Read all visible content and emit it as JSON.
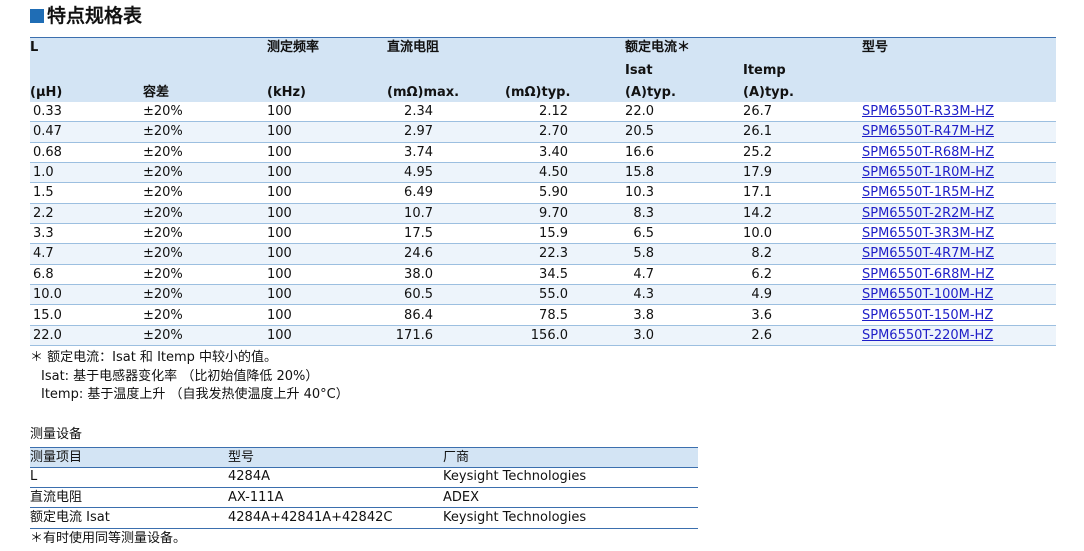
{
  "title": "特点规格表",
  "spec_table": {
    "header": [
      [
        "L",
        null,
        "测定频率",
        "直流电阻",
        null,
        "额定电流＊",
        null,
        "型号"
      ],
      [
        null,
        null,
        null,
        null,
        null,
        "Isat",
        "Itemp",
        null
      ],
      [
        "(μH)",
        "容差",
        "(kHz)",
        "(mΩ)max.",
        "(mΩ)typ.",
        "(A)typ.",
        "(A)typ.",
        null
      ]
    ],
    "rows": [
      [
        "0.33",
        "±20%",
        "100",
        "2.34",
        "2.12",
        "22.0",
        "26.7",
        "SPM6550T-R33M-HZ"
      ],
      [
        "0.47",
        "±20%",
        "100",
        "2.97",
        "2.70",
        "20.5",
        "26.1",
        "SPM6550T-R47M-HZ"
      ],
      [
        "0.68",
        "±20%",
        "100",
        "3.74",
        "3.40",
        "16.6",
        "25.2",
        "SPM6550T-R68M-HZ"
      ],
      [
        "1.0",
        "±20%",
        "100",
        "4.95",
        "4.50",
        "15.8",
        "17.9",
        "SPM6550T-1R0M-HZ"
      ],
      [
        "1.5",
        "±20%",
        "100",
        "6.49",
        "5.90",
        "10.3",
        "17.1",
        "SPM6550T-1R5M-HZ"
      ],
      [
        "2.2",
        "±20%",
        "100",
        "10.7",
        "9.70",
        "8.3",
        "14.2",
        "SPM6550T-2R2M-HZ"
      ],
      [
        "3.3",
        "±20%",
        "100",
        "17.5",
        "15.9",
        "6.5",
        "10.0",
        "SPM6550T-3R3M-HZ"
      ],
      [
        "4.7",
        "±20%",
        "100",
        "24.6",
        "22.3",
        "5.8",
        "8.2",
        "SPM6550T-4R7M-HZ"
      ],
      [
        "6.8",
        "±20%",
        "100",
        "38.0",
        "34.5",
        "4.7",
        "6.2",
        "SPM6550T-6R8M-HZ"
      ],
      [
        "10.0",
        "±20%",
        "100",
        "60.5",
        "55.0",
        "4.3",
        "4.9",
        "SPM6550T-100M-HZ"
      ],
      [
        "15.0",
        "±20%",
        "100",
        "86.4",
        "78.5",
        "3.8",
        "3.6",
        "SPM6550T-150M-HZ"
      ],
      [
        "22.0",
        "±20%",
        "100",
        "171.6",
        "156.0",
        "3.0",
        "2.6",
        "SPM6550T-220M-HZ"
      ]
    ]
  },
  "notes": [
    "＊ 额定电流：Isat 和 Itemp 中较小的值。",
    "Isat: 基于电感器变化率 （比初始值降低 20%）",
    "Itemp: 基于温度上升 （自我发热使温度上升 40°C）"
  ],
  "equipment": {
    "title": "测量设备",
    "header": [
      "测量项目",
      "型号",
      "厂商"
    ],
    "rows": [
      [
        "L",
        "4284A",
        "Keysight Technologies"
      ],
      [
        "直流电阻",
        "AX-111A",
        "ADEX"
      ],
      [
        "额定电流 Isat",
        "4284A+42841A+42842C",
        "Keysight Technologies"
      ]
    ],
    "note": "＊有时使用同等测量设备。"
  }
}
